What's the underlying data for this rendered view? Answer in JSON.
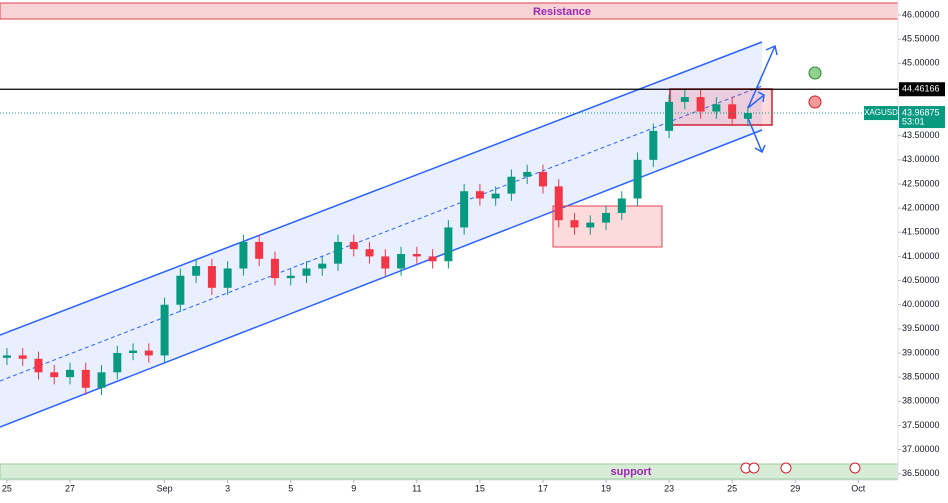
{
  "chart_data": {
    "type": "candlestick",
    "x": [
      0,
      0.5,
      1,
      1.5,
      2,
      2.5,
      3,
      3.5,
      4,
      4.5,
      5,
      5.5,
      6,
      6.5,
      7,
      7.5,
      8,
      8.5,
      9,
      9.5,
      10,
      10.5,
      11,
      11.5,
      12,
      12.5,
      13,
      13.5,
      14,
      14.5,
      15,
      15.5,
      16,
      16.5,
      17,
      17.5,
      18,
      18.5,
      19,
      19.5,
      20,
      20.5,
      21,
      21.5,
      22,
      22.5,
      23,
      23.5
    ],
    "series": [
      {
        "name": "XAGUSD",
        "up_color": "#089981",
        "down_color": "#f23645",
        "open": [
          38.9,
          38.95,
          38.88,
          38.6,
          38.5,
          38.65,
          38.28,
          38.6,
          39.0,
          39.05,
          38.95,
          40.0,
          40.6,
          40.8,
          40.35,
          40.75,
          41.3,
          40.95,
          40.55,
          40.6,
          40.75,
          40.85,
          41.3,
          41.15,
          41.0,
          40.75,
          41.05,
          41.0,
          40.9,
          41.6,
          42.35,
          42.2,
          42.3,
          42.65,
          42.75,
          42.45,
          41.75,
          41.6,
          41.7,
          41.9,
          42.2,
          43.0,
          43.6,
          44.2,
          44.3,
          44.0,
          44.15,
          43.85
        ],
        "high": [
          39.1,
          39.1,
          39.03,
          38.75,
          38.8,
          38.8,
          38.75,
          39.15,
          39.2,
          39.2,
          40.15,
          40.75,
          40.95,
          40.95,
          40.9,
          41.45,
          41.45,
          41.1,
          40.75,
          40.9,
          41.0,
          41.45,
          41.45,
          41.3,
          41.15,
          41.2,
          41.2,
          41.15,
          41.75,
          42.5,
          42.5,
          42.45,
          42.8,
          42.9,
          42.9,
          42.6,
          41.9,
          41.85,
          42.05,
          42.35,
          43.15,
          43.75,
          44.35,
          44.45,
          44.45,
          44.3,
          44.3,
          44.12
        ],
        "low": [
          38.75,
          38.73,
          38.45,
          38.35,
          38.35,
          38.13,
          38.13,
          38.45,
          38.85,
          38.8,
          38.8,
          39.85,
          40.45,
          40.2,
          40.2,
          40.6,
          40.8,
          40.4,
          40.4,
          40.45,
          40.6,
          40.7,
          41.0,
          40.85,
          40.6,
          40.6,
          40.85,
          40.75,
          40.75,
          41.45,
          42.05,
          42.05,
          42.15,
          42.5,
          42.3,
          41.6,
          41.45,
          41.45,
          41.55,
          41.75,
          42.05,
          42.85,
          43.45,
          44.05,
          43.85,
          43.85,
          43.7,
          43.7
        ],
        "close": [
          38.95,
          38.88,
          38.6,
          38.5,
          38.65,
          38.28,
          38.6,
          39.0,
          39.05,
          38.95,
          40.0,
          40.6,
          40.8,
          40.35,
          40.75,
          41.3,
          40.95,
          40.55,
          40.6,
          40.75,
          40.85,
          41.3,
          41.15,
          41.0,
          40.75,
          41.05,
          41.0,
          40.9,
          41.6,
          42.35,
          42.2,
          42.3,
          42.65,
          42.75,
          42.45,
          41.75,
          41.6,
          41.7,
          41.9,
          42.2,
          43.0,
          43.6,
          44.2,
          44.3,
          44.0,
          44.15,
          43.85,
          43.97
        ]
      }
    ],
    "xlim": [
      -0.22,
      28.26
    ],
    "xticks": [
      {
        "value": 0,
        "label": "25"
      },
      {
        "value": 2,
        "label": "27"
      },
      {
        "value": 5,
        "label": "Sep"
      },
      {
        "value": 7,
        "label": "3"
      },
      {
        "value": 9,
        "label": "5"
      },
      {
        "value": 11,
        "label": "9"
      },
      {
        "value": 13,
        "label": "11"
      },
      {
        "value": 15,
        "label": "15"
      },
      {
        "value": 17,
        "label": "17"
      },
      {
        "value": 19,
        "label": "19"
      },
      {
        "value": 21,
        "label": "23"
      },
      {
        "value": 23,
        "label": "25"
      },
      {
        "value": 25,
        "label": "29"
      },
      {
        "value": 27,
        "label": "Oct"
      }
    ],
    "ylim": [
      36.37,
      46.31
    ],
    "yticks": [
      {
        "value": 36.5,
        "label": "36.50000"
      },
      {
        "value": 37,
        "label": "37.00000"
      },
      {
        "value": 37.5,
        "label": "37.50000"
      },
      {
        "value": 38,
        "label": "38.00000"
      },
      {
        "value": 38.5,
        "label": "38.50000"
      },
      {
        "value": 39,
        "label": "39.00000"
      },
      {
        "value": 39.5,
        "label": "39.50000"
      },
      {
        "value": 40,
        "label": "40.00000"
      },
      {
        "value": 40.5,
        "label": "40.50000"
      },
      {
        "value": 41,
        "label": "41.00000"
      },
      {
        "value": 41.5,
        "label": "41.50000"
      },
      {
        "value": 42,
        "label": "42.00000"
      },
      {
        "value": 42.5,
        "label": "42.50000"
      },
      {
        "value": 43,
        "label": "43.00000"
      },
      {
        "value": 43.5,
        "label": "43.50000"
      },
      {
        "value": 44,
        "label": "44.00000"
      },
      {
        "value": 44.5,
        "label": "44.50000"
      },
      {
        "value": 45,
        "label": "45.00000"
      },
      {
        "value": 45.5,
        "label": "45.50000"
      },
      {
        "value": 46,
        "label": "46.00000"
      }
    ],
    "grid": false,
    "hline": {
      "value": 44.46166,
      "color": "#000000"
    },
    "last_price": {
      "value": 43.96875,
      "countdown": "53:01",
      "color": "#089981"
    },
    "resistance_label": "Resistance",
    "support_label": "support"
  }
}
